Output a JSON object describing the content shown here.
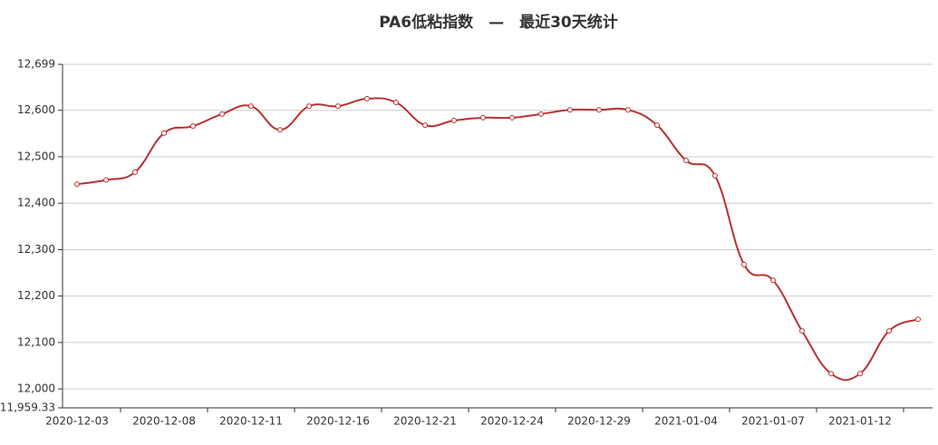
{
  "chart_data": {
    "type": "line",
    "title": "PA6低粘指数　—　最近30天统计",
    "categories": [
      "2020-12-03",
      null,
      null,
      "2020-12-08",
      null,
      null,
      "2020-12-11",
      null,
      null,
      "2020-12-16",
      null,
      null,
      "2020-12-21",
      null,
      null,
      "2020-12-24",
      null,
      null,
      "2020-12-29",
      null,
      null,
      "2021-01-04",
      null,
      null,
      "2021-01-07",
      null,
      null,
      "2021-01-12",
      null,
      null
    ],
    "series": [
      {
        "color": "#b83232",
        "values": [
          12441,
          12450,
          12467,
          12551,
          12566,
          12592,
          12609,
          12558,
          12609,
          12609,
          12625,
          12617,
          12568,
          12578,
          12584,
          12584,
          12592,
          12601,
          12601,
          12601,
          12568,
          12492,
          12459,
          12268,
          12234,
          12125,
          12033,
          12033,
          12125,
          12150
        ]
      }
    ],
    "ylim": [
      11959.33,
      12699
    ],
    "yticks": [
      {
        "value": 11959.33,
        "label": "11,959.33"
      },
      {
        "value": 12000,
        "label": "12,000"
      },
      {
        "value": 12100,
        "label": "12,100"
      },
      {
        "value": 12200,
        "label": "12,200"
      },
      {
        "value": 12300,
        "label": "12,300"
      },
      {
        "value": 12400,
        "label": "12,400"
      },
      {
        "value": 12500,
        "label": "12,500"
      },
      {
        "value": 12600,
        "label": "12,600"
      },
      {
        "value": 12699,
        "label": "12,699"
      }
    ],
    "grid": true
  }
}
